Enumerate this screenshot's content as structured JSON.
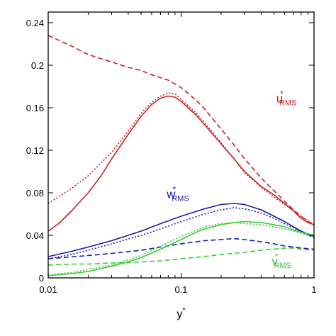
{
  "chart_data": {
    "type": "line",
    "xscale": "log",
    "xlim": [
      0.01,
      1
    ],
    "ylim": [
      0,
      0.25
    ],
    "xlabel": "y",
    "xlabel_sup": "*",
    "x_ticks": [
      {
        "value": 0.01,
        "label": "0.01"
      },
      {
        "value": 0.1,
        "label": "0.1"
      },
      {
        "value": 1,
        "label": "1"
      }
    ],
    "y_ticks": [
      {
        "value": 0,
        "label": "0"
      },
      {
        "value": 0.04,
        "label": "0.04"
      },
      {
        "value": 0.08,
        "label": "0.08"
      },
      {
        "value": 0.12,
        "label": "0.12"
      },
      {
        "value": 0.16,
        "label": "0.16"
      },
      {
        "value": 0.2,
        "label": "0.2"
      },
      {
        "value": 0.24,
        "label": "0.24"
      }
    ],
    "grid": false,
    "legend": "none",
    "annotations": [
      {
        "id": "u",
        "base": "u",
        "sup": "*",
        "sub": "RMS",
        "color": "#cc2222",
        "x": 0.52,
        "y": 0.165
      },
      {
        "id": "w",
        "base": "w",
        "sup": "*",
        "sub": "RMS",
        "color": "#1a1aaa",
        "x": 0.078,
        "y": 0.075
      },
      {
        "id": "v",
        "base": "v",
        "sup": "*",
        "sub": "RMS",
        "color": "#33cc33",
        "x": 0.48,
        "y": 0.012
      }
    ],
    "series": [
      {
        "group": "u",
        "style": "solid",
        "color": "#cc2222",
        "points": [
          [
            0.01,
            0.044
          ],
          [
            0.012,
            0.051
          ],
          [
            0.015,
            0.063
          ],
          [
            0.02,
            0.08
          ],
          [
            0.025,
            0.096
          ],
          [
            0.03,
            0.112
          ],
          [
            0.04,
            0.135
          ],
          [
            0.05,
            0.152
          ],
          [
            0.06,
            0.163
          ],
          [
            0.07,
            0.169
          ],
          [
            0.08,
            0.171
          ],
          [
            0.09,
            0.17
          ],
          [
            0.1,
            0.166
          ],
          [
            0.13,
            0.153
          ],
          [
            0.15,
            0.144
          ],
          [
            0.2,
            0.126
          ],
          [
            0.25,
            0.112
          ],
          [
            0.3,
            0.1
          ],
          [
            0.4,
            0.086
          ],
          [
            0.5,
            0.078
          ],
          [
            0.6,
            0.07
          ],
          [
            0.7,
            0.063
          ],
          [
            0.8,
            0.056
          ],
          [
            0.9,
            0.052
          ],
          [
            1,
            0.05
          ]
        ]
      },
      {
        "group": "u",
        "style": "dotted",
        "color": "#cc2222",
        "points": [
          [
            0.01,
            0.07
          ],
          [
            0.015,
            0.084
          ],
          [
            0.02,
            0.096
          ],
          [
            0.03,
            0.118
          ],
          [
            0.04,
            0.138
          ],
          [
            0.05,
            0.155
          ],
          [
            0.06,
            0.165
          ],
          [
            0.07,
            0.171
          ],
          [
            0.08,
            0.174
          ],
          [
            0.09,
            0.173
          ],
          [
            0.1,
            0.168
          ],
          [
            0.13,
            0.155
          ],
          [
            0.15,
            0.146
          ],
          [
            0.2,
            0.127
          ],
          [
            0.25,
            0.112
          ],
          [
            0.3,
            0.099
          ],
          [
            0.4,
            0.085
          ],
          [
            0.5,
            0.076
          ],
          [
            0.6,
            0.069
          ],
          [
            0.7,
            0.063
          ],
          [
            0.8,
            0.058
          ],
          [
            1,
            0.05
          ]
        ]
      },
      {
        "group": "u",
        "style": "dashed",
        "color": "#cc2222",
        "points": [
          [
            0.01,
            0.228
          ],
          [
            0.015,
            0.218
          ],
          [
            0.02,
            0.21
          ],
          [
            0.03,
            0.203
          ],
          [
            0.04,
            0.198
          ],
          [
            0.05,
            0.195
          ],
          [
            0.06,
            0.191
          ],
          [
            0.08,
            0.186
          ],
          [
            0.1,
            0.179
          ],
          [
            0.13,
            0.167
          ],
          [
            0.15,
            0.159
          ],
          [
            0.2,
            0.14
          ],
          [
            0.25,
            0.125
          ],
          [
            0.3,
            0.112
          ],
          [
            0.4,
            0.094
          ],
          [
            0.5,
            0.082
          ],
          [
            0.6,
            0.072
          ],
          [
            0.7,
            0.064
          ],
          [
            0.8,
            0.058
          ],
          [
            0.9,
            0.053
          ],
          [
            1,
            0.05
          ]
        ]
      },
      {
        "group": "w",
        "style": "solid",
        "color": "#1a1aaa",
        "points": [
          [
            0.01,
            0.02
          ],
          [
            0.015,
            0.025
          ],
          [
            0.02,
            0.029
          ],
          [
            0.03,
            0.035
          ],
          [
            0.05,
            0.044
          ],
          [
            0.07,
            0.051
          ],
          [
            0.1,
            0.058
          ],
          [
            0.15,
            0.065
          ],
          [
            0.2,
            0.069
          ],
          [
            0.25,
            0.07
          ],
          [
            0.3,
            0.069
          ],
          [
            0.4,
            0.064
          ],
          [
            0.5,
            0.058
          ],
          [
            0.6,
            0.053
          ],
          [
            0.7,
            0.048
          ],
          [
            0.8,
            0.044
          ],
          [
            0.9,
            0.041
          ],
          [
            1,
            0.039
          ]
        ]
      },
      {
        "group": "w",
        "style": "dotted",
        "color": "#1a1aaa",
        "points": [
          [
            0.01,
            0.018
          ],
          [
            0.015,
            0.022
          ],
          [
            0.02,
            0.026
          ],
          [
            0.03,
            0.032
          ],
          [
            0.05,
            0.04
          ],
          [
            0.07,
            0.046
          ],
          [
            0.1,
            0.053
          ],
          [
            0.15,
            0.06
          ],
          [
            0.2,
            0.064
          ],
          [
            0.25,
            0.066
          ],
          [
            0.3,
            0.065
          ],
          [
            0.4,
            0.061
          ],
          [
            0.5,
            0.056
          ],
          [
            0.6,
            0.051
          ],
          [
            0.7,
            0.047
          ],
          [
            0.8,
            0.043
          ],
          [
            0.9,
            0.04
          ],
          [
            1,
            0.038
          ]
        ]
      },
      {
        "group": "w",
        "style": "dashed",
        "color": "#1a1aaa",
        "points": [
          [
            0.01,
            0.018
          ],
          [
            0.02,
            0.021
          ],
          [
            0.03,
            0.023
          ],
          [
            0.05,
            0.026
          ],
          [
            0.07,
            0.029
          ],
          [
            0.1,
            0.032
          ],
          [
            0.15,
            0.035
          ],
          [
            0.2,
            0.036
          ],
          [
            0.25,
            0.037
          ],
          [
            0.3,
            0.036
          ],
          [
            0.4,
            0.034
          ],
          [
            0.5,
            0.032
          ],
          [
            0.6,
            0.03
          ],
          [
            0.7,
            0.029
          ],
          [
            0.8,
            0.028
          ],
          [
            1,
            0.027
          ]
        ]
      },
      {
        "group": "v",
        "style": "solid",
        "color": "#33cc33",
        "points": [
          [
            0.01,
            0.002
          ],
          [
            0.015,
            0.004
          ],
          [
            0.02,
            0.006
          ],
          [
            0.03,
            0.011
          ],
          [
            0.04,
            0.015
          ],
          [
            0.05,
            0.019
          ],
          [
            0.07,
            0.027
          ],
          [
            0.1,
            0.036
          ],
          [
            0.13,
            0.043
          ],
          [
            0.15,
            0.046
          ],
          [
            0.2,
            0.05
          ],
          [
            0.25,
            0.052
          ],
          [
            0.3,
            0.053
          ],
          [
            0.4,
            0.052
          ],
          [
            0.5,
            0.05
          ],
          [
            0.6,
            0.048
          ],
          [
            0.7,
            0.045
          ],
          [
            0.8,
            0.043
          ],
          [
            1,
            0.04
          ]
        ]
      },
      {
        "group": "v",
        "style": "dotted",
        "color": "#33cc33",
        "points": [
          [
            0.01,
            0.003
          ],
          [
            0.015,
            0.005
          ],
          [
            0.02,
            0.008
          ],
          [
            0.03,
            0.012
          ],
          [
            0.04,
            0.017
          ],
          [
            0.05,
            0.021
          ],
          [
            0.07,
            0.03
          ],
          [
            0.1,
            0.039
          ],
          [
            0.13,
            0.045
          ],
          [
            0.15,
            0.048
          ],
          [
            0.2,
            0.051
          ],
          [
            0.25,
            0.052
          ],
          [
            0.3,
            0.051
          ],
          [
            0.4,
            0.05
          ],
          [
            0.5,
            0.048
          ],
          [
            0.6,
            0.046
          ],
          [
            0.7,
            0.044
          ],
          [
            0.8,
            0.042
          ],
          [
            1,
            0.039
          ]
        ]
      },
      {
        "group": "v",
        "style": "dashed",
        "color": "#33cc33",
        "points": [
          [
            0.01,
            0.012
          ],
          [
            0.015,
            0.013
          ],
          [
            0.02,
            0.013
          ],
          [
            0.03,
            0.014
          ],
          [
            0.05,
            0.015
          ],
          [
            0.07,
            0.016
          ],
          [
            0.1,
            0.018
          ],
          [
            0.15,
            0.02
          ],
          [
            0.2,
            0.022
          ],
          [
            0.3,
            0.024
          ],
          [
            0.4,
            0.026
          ],
          [
            0.5,
            0.027
          ],
          [
            0.6,
            0.028
          ],
          [
            0.7,
            0.028
          ],
          [
            0.8,
            0.027
          ],
          [
            1,
            0.026
          ]
        ]
      }
    ]
  }
}
